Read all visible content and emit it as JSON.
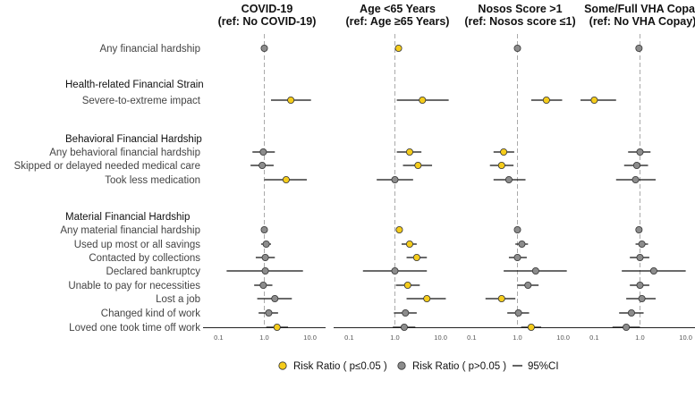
{
  "chart_data": {
    "type": "forest",
    "x_scale": "log10",
    "xlim": [
      0.05,
      20
    ],
    "x_ticks": [
      "0.1",
      "1.0",
      "10.0"
    ],
    "reference_value": 1,
    "colors": {
      "significant": "#F5CC1B",
      "not_significant": "#8C8C8C",
      "ci": "#111111",
      "reference": "#AAAAAA"
    },
    "rows": [
      {
        "label": "Any financial hardship",
        "type": "item"
      },
      {
        "label": "Health-related Financial Strain",
        "type": "header"
      },
      {
        "label": "Severe-to-extreme impact",
        "type": "item"
      },
      {
        "label": "Behavioral Financial Hardship",
        "type": "header"
      },
      {
        "label": "Any behavioral financial hardship",
        "type": "item"
      },
      {
        "label": "Skipped or delayed needed medical care",
        "type": "item"
      },
      {
        "label": "Took less medication",
        "type": "item"
      },
      {
        "label": "Material Financial Hardship",
        "type": "header"
      },
      {
        "label": "Any material financial hardship",
        "type": "item"
      },
      {
        "label": "Used up most or all savings",
        "type": "item"
      },
      {
        "label": "Contacted by collections",
        "type": "item"
      },
      {
        "label": "Declared bankruptcy",
        "type": "item"
      },
      {
        "label": "Unable to pay for necessities",
        "type": "item"
      },
      {
        "label": "Lost a job",
        "type": "item"
      },
      {
        "label": "Changed kind of work",
        "type": "item"
      },
      {
        "label": "Loved one took time off work",
        "type": "item"
      }
    ],
    "panels": [
      {
        "title_line1": "COVID-19",
        "title_line2": "(ref: No COVID-19)",
        "estimates": [
          {
            "row": "Any financial hardship",
            "rr": 1.0,
            "lo": 0.95,
            "hi": 1.05,
            "sig": false
          },
          {
            "row": "Severe-to-extreme impact",
            "rr": 3.8,
            "lo": 1.4,
            "hi": 10.5,
            "sig": true
          },
          {
            "row": "Any behavioral financial hardship",
            "rr": 0.95,
            "lo": 0.55,
            "hi": 1.7,
            "sig": false
          },
          {
            "row": "Skipped or delayed needed medical care",
            "rr": 0.9,
            "lo": 0.5,
            "hi": 1.6,
            "sig": false
          },
          {
            "row": "Took less medication",
            "rr": 3.0,
            "lo": 1.0,
            "hi": 8.5,
            "sig": true
          },
          {
            "row": "Any material financial hardship",
            "rr": 1.0,
            "lo": 0.9,
            "hi": 1.1,
            "sig": false
          },
          {
            "row": "Used up most or all savings",
            "rr": 1.1,
            "lo": 0.85,
            "hi": 1.4,
            "sig": false
          },
          {
            "row": "Contacted by collections",
            "rr": 1.05,
            "lo": 0.65,
            "hi": 1.7,
            "sig": false
          },
          {
            "row": "Declared bankruptcy",
            "rr": 1.05,
            "lo": 0.15,
            "hi": 7.0,
            "sig": false
          },
          {
            "row": "Unable to pay for necessities",
            "rr": 0.95,
            "lo": 0.6,
            "hi": 1.5,
            "sig": false
          },
          {
            "row": "Lost a job",
            "rr": 1.7,
            "lo": 0.7,
            "hi": 4.0,
            "sig": false
          },
          {
            "row": "Changed kind of work",
            "rr": 1.25,
            "lo": 0.75,
            "hi": 2.0,
            "sig": false
          },
          {
            "row": "Loved one took time off work",
            "rr": 1.9,
            "lo": 1.1,
            "hi": 3.3,
            "sig": true
          }
        ]
      },
      {
        "title_line1": "Age <65 Years",
        "title_line2": "(ref: Age ≥65 Years)",
        "estimates": [
          {
            "row": "Any financial hardship",
            "rr": 1.2,
            "lo": 1.1,
            "hi": 1.3,
            "sig": true
          },
          {
            "row": "Severe-to-extreme impact",
            "rr": 4.0,
            "lo": 1.1,
            "hi": 15.0,
            "sig": true
          },
          {
            "row": "Any behavioral financial hardship",
            "rr": 2.1,
            "lo": 1.1,
            "hi": 3.8,
            "sig": true
          },
          {
            "row": "Skipped or delayed needed medical care",
            "rr": 3.2,
            "lo": 1.5,
            "hi": 6.5,
            "sig": true
          },
          {
            "row": "Took less medication",
            "rr": 1.0,
            "lo": 0.4,
            "hi": 2.5,
            "sig": false
          },
          {
            "row": "Any material financial hardship",
            "rr": 1.25,
            "lo": 1.1,
            "hi": 1.4,
            "sig": true
          },
          {
            "row": "Used up most or all savings",
            "rr": 2.1,
            "lo": 1.4,
            "hi": 3.0,
            "sig": true
          },
          {
            "row": "Contacted by collections",
            "rr": 3.0,
            "lo": 1.8,
            "hi": 5.0,
            "sig": true
          },
          {
            "row": "Declared bankruptcy",
            "rr": 1.0,
            "lo": 0.2,
            "hi": 5.0,
            "sig": false
          },
          {
            "row": "Unable to pay for necessities",
            "rr": 1.9,
            "lo": 1.05,
            "hi": 3.5,
            "sig": true
          },
          {
            "row": "Lost a job",
            "rr": 5.0,
            "lo": 1.8,
            "hi": 13.0,
            "sig": true
          },
          {
            "row": "Changed kind of work",
            "rr": 1.7,
            "lo": 0.95,
            "hi": 3.0,
            "sig": false
          },
          {
            "row": "Loved one took time off work",
            "rr": 1.6,
            "lo": 0.9,
            "hi": 2.8,
            "sig": false
          }
        ]
      },
      {
        "title_line1": "Nosos Score >1",
        "title_line2": "(ref: Nosos score ≤1)",
        "estimates": [
          {
            "row": "Any financial hardship",
            "rr": 1.0,
            "lo": 0.95,
            "hi": 1.05,
            "sig": false
          },
          {
            "row": "Severe-to-extreme impact",
            "rr": 4.3,
            "lo": 2.0,
            "hi": 9.5,
            "sig": true
          },
          {
            "row": "Any behavioral financial hardship",
            "rr": 0.5,
            "lo": 0.3,
            "hi": 0.85,
            "sig": true
          },
          {
            "row": "Skipped or delayed needed medical care",
            "rr": 0.45,
            "lo": 0.25,
            "hi": 0.82,
            "sig": true
          },
          {
            "row": "Took less medication",
            "rr": 0.65,
            "lo": 0.3,
            "hi": 1.5,
            "sig": false
          },
          {
            "row": "Any material financial hardship",
            "rr": 1.0,
            "lo": 0.9,
            "hi": 1.1,
            "sig": false
          },
          {
            "row": "Used up most or all savings",
            "rr": 1.25,
            "lo": 0.9,
            "hi": 1.7,
            "sig": false
          },
          {
            "row": "Contacted by collections",
            "rr": 1.0,
            "lo": 0.65,
            "hi": 1.6,
            "sig": false
          },
          {
            "row": "Declared bankruptcy",
            "rr": 2.5,
            "lo": 0.5,
            "hi": 12.0,
            "sig": false
          },
          {
            "row": "Unable to pay for necessities",
            "rr": 1.7,
            "lo": 1.0,
            "hi": 2.9,
            "sig": false
          },
          {
            "row": "Lost a job",
            "rr": 0.45,
            "lo": 0.2,
            "hi": 0.9,
            "sig": true
          },
          {
            "row": "Changed kind of work",
            "rr": 1.05,
            "lo": 0.6,
            "hi": 1.8,
            "sig": false
          },
          {
            "row": "Loved one took time off work",
            "rr": 2.0,
            "lo": 1.2,
            "hi": 3.3,
            "sig": true
          }
        ]
      },
      {
        "title_line1": "Some/Full VHA Copay",
        "title_line2": "(ref: No VHA Copay)",
        "estimates": [
          {
            "row": "Any financial hardship",
            "rr": 0.95,
            "lo": 0.88,
            "hi": 1.05,
            "sig": false
          },
          {
            "row": "Severe-to-extreme impact",
            "rr": 0.1,
            "lo": 0.05,
            "hi": 0.3,
            "sig": true
          },
          {
            "row": "Any behavioral financial hardship",
            "rr": 1.0,
            "lo": 0.55,
            "hi": 1.7,
            "sig": false
          },
          {
            "row": "Skipped or delayed needed medical care",
            "rr": 0.85,
            "lo": 0.45,
            "hi": 1.5,
            "sig": false
          },
          {
            "row": "Took less medication",
            "rr": 0.8,
            "lo": 0.3,
            "hi": 2.2,
            "sig": false
          },
          {
            "row": "Any material financial hardship",
            "rr": 0.95,
            "lo": 0.85,
            "hi": 1.1,
            "sig": false
          },
          {
            "row": "Used up most or all savings",
            "rr": 1.1,
            "lo": 0.8,
            "hi": 1.5,
            "sig": false
          },
          {
            "row": "Contacted by collections",
            "rr": 1.0,
            "lo": 0.6,
            "hi": 1.6,
            "sig": false
          },
          {
            "row": "Declared bankruptcy",
            "rr": 2.0,
            "lo": 0.4,
            "hi": 10.0,
            "sig": false
          },
          {
            "row": "Unable to pay for necessities",
            "rr": 1.0,
            "lo": 0.6,
            "hi": 1.6,
            "sig": false
          },
          {
            "row": "Lost a job",
            "rr": 1.1,
            "lo": 0.5,
            "hi": 2.2,
            "sig": false
          },
          {
            "row": "Changed kind of work",
            "rr": 0.65,
            "lo": 0.35,
            "hi": 1.2,
            "sig": false
          },
          {
            "row": "Loved one took time off work",
            "rr": 0.5,
            "lo": 0.25,
            "hi": 1.0,
            "sig": false
          }
        ]
      }
    ],
    "legend": [
      {
        "marker": "yellow-circle",
        "label": "Risk Ratio ( p≤0.05 )"
      },
      {
        "marker": "gray-circle",
        "label": "Risk Ratio ( p>0.05 )"
      },
      {
        "marker": "line",
        "label": "95%CI"
      }
    ]
  }
}
